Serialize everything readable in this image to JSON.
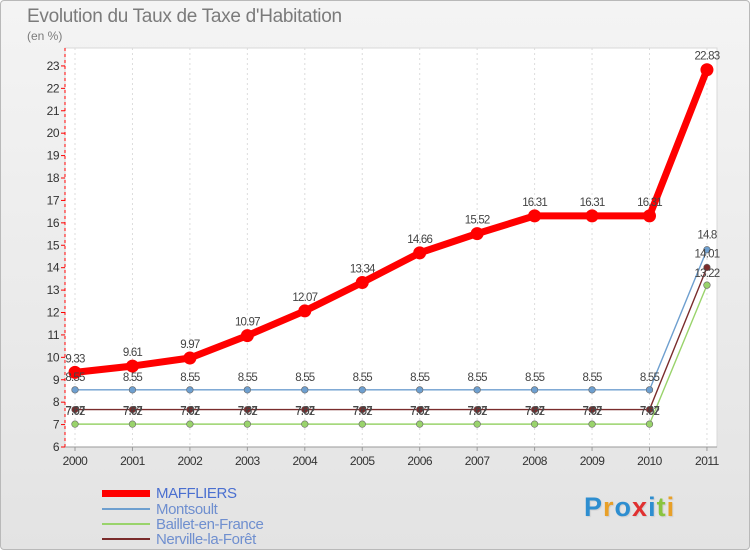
{
  "chart_data": {
    "type": "line",
    "title": "Evolution du Taux de Taxe d'Habitation",
    "ylabel": "(en %)",
    "xlabel": "",
    "categories": [
      "2000",
      "2001",
      "2002",
      "2003",
      "2004",
      "2005",
      "2006",
      "2007",
      "2008",
      "2009",
      "2010",
      "2011"
    ],
    "ylim": [
      6,
      23.8
    ],
    "yticks": [
      "6",
      "7",
      "8",
      "9",
      "10",
      "11",
      "12",
      "13",
      "14",
      "15",
      "16",
      "17",
      "18",
      "19",
      "20",
      "21",
      "22",
      "23"
    ],
    "grid": "dashed vertical",
    "series": [
      {
        "name": "MAFFLIERS",
        "color": "#ff0000",
        "values": [
          9.33,
          9.61,
          9.97,
          10.97,
          12.07,
          13.34,
          14.66,
          15.52,
          16.31,
          16.31,
          16.31,
          22.83
        ],
        "labels": [
          "9.33",
          "9.61",
          "9.97",
          "10.97",
          "12.07",
          "13.34",
          "14.66",
          "15.52",
          "16.31",
          "16.31",
          "16.31",
          "22.83"
        ]
      },
      {
        "name": "Montsoult",
        "color": "#6e9fcf",
        "values": [
          8.55,
          8.55,
          8.55,
          8.55,
          8.55,
          8.55,
          8.55,
          8.55,
          8.55,
          8.55,
          8.55,
          14.8
        ],
        "labels": [
          "8.55",
          "8.55",
          "8.55",
          "8.55",
          "8.55",
          "8.55",
          "8.55",
          "8.55",
          "8.55",
          "8.55",
          "8.55",
          "14.8"
        ]
      },
      {
        "name": "Baillet-en-France",
        "color": "#99d36b",
        "values": [
          7.02,
          7.02,
          7.02,
          7.02,
          7.02,
          7.02,
          7.02,
          7.02,
          7.02,
          7.02,
          7.02,
          13.22
        ],
        "labels": [
          "7.02",
          "7.02",
          "7.02",
          "7.02",
          "7.02",
          "7.02",
          "7.02",
          "7.02",
          "7.02",
          "7.02",
          "7.02",
          "13.22"
        ]
      },
      {
        "name": "Nerville-la-Forêt",
        "color": "#7a2c2c",
        "values": [
          7.67,
          7.67,
          7.67,
          7.67,
          7.67,
          7.67,
          7.67,
          7.67,
          7.67,
          7.67,
          7.67,
          14.01
        ],
        "labels": [
          "7.67",
          "7.67",
          "7.67",
          "7.67",
          "7.67",
          "7.67",
          "7.67",
          "7.67",
          "7.67",
          "7.67",
          "7.67",
          "14.01"
        ]
      }
    ]
  },
  "logo": {
    "text": "Proxiti",
    "letters": [
      "P",
      "r",
      "o",
      "x",
      "i",
      "t",
      "i"
    ],
    "colors": [
      "#2e8ed0",
      "#e8a028",
      "#2e8ed0",
      "#e03030",
      "#2e8ed0",
      "#8ac43f",
      "#e8a028"
    ]
  }
}
